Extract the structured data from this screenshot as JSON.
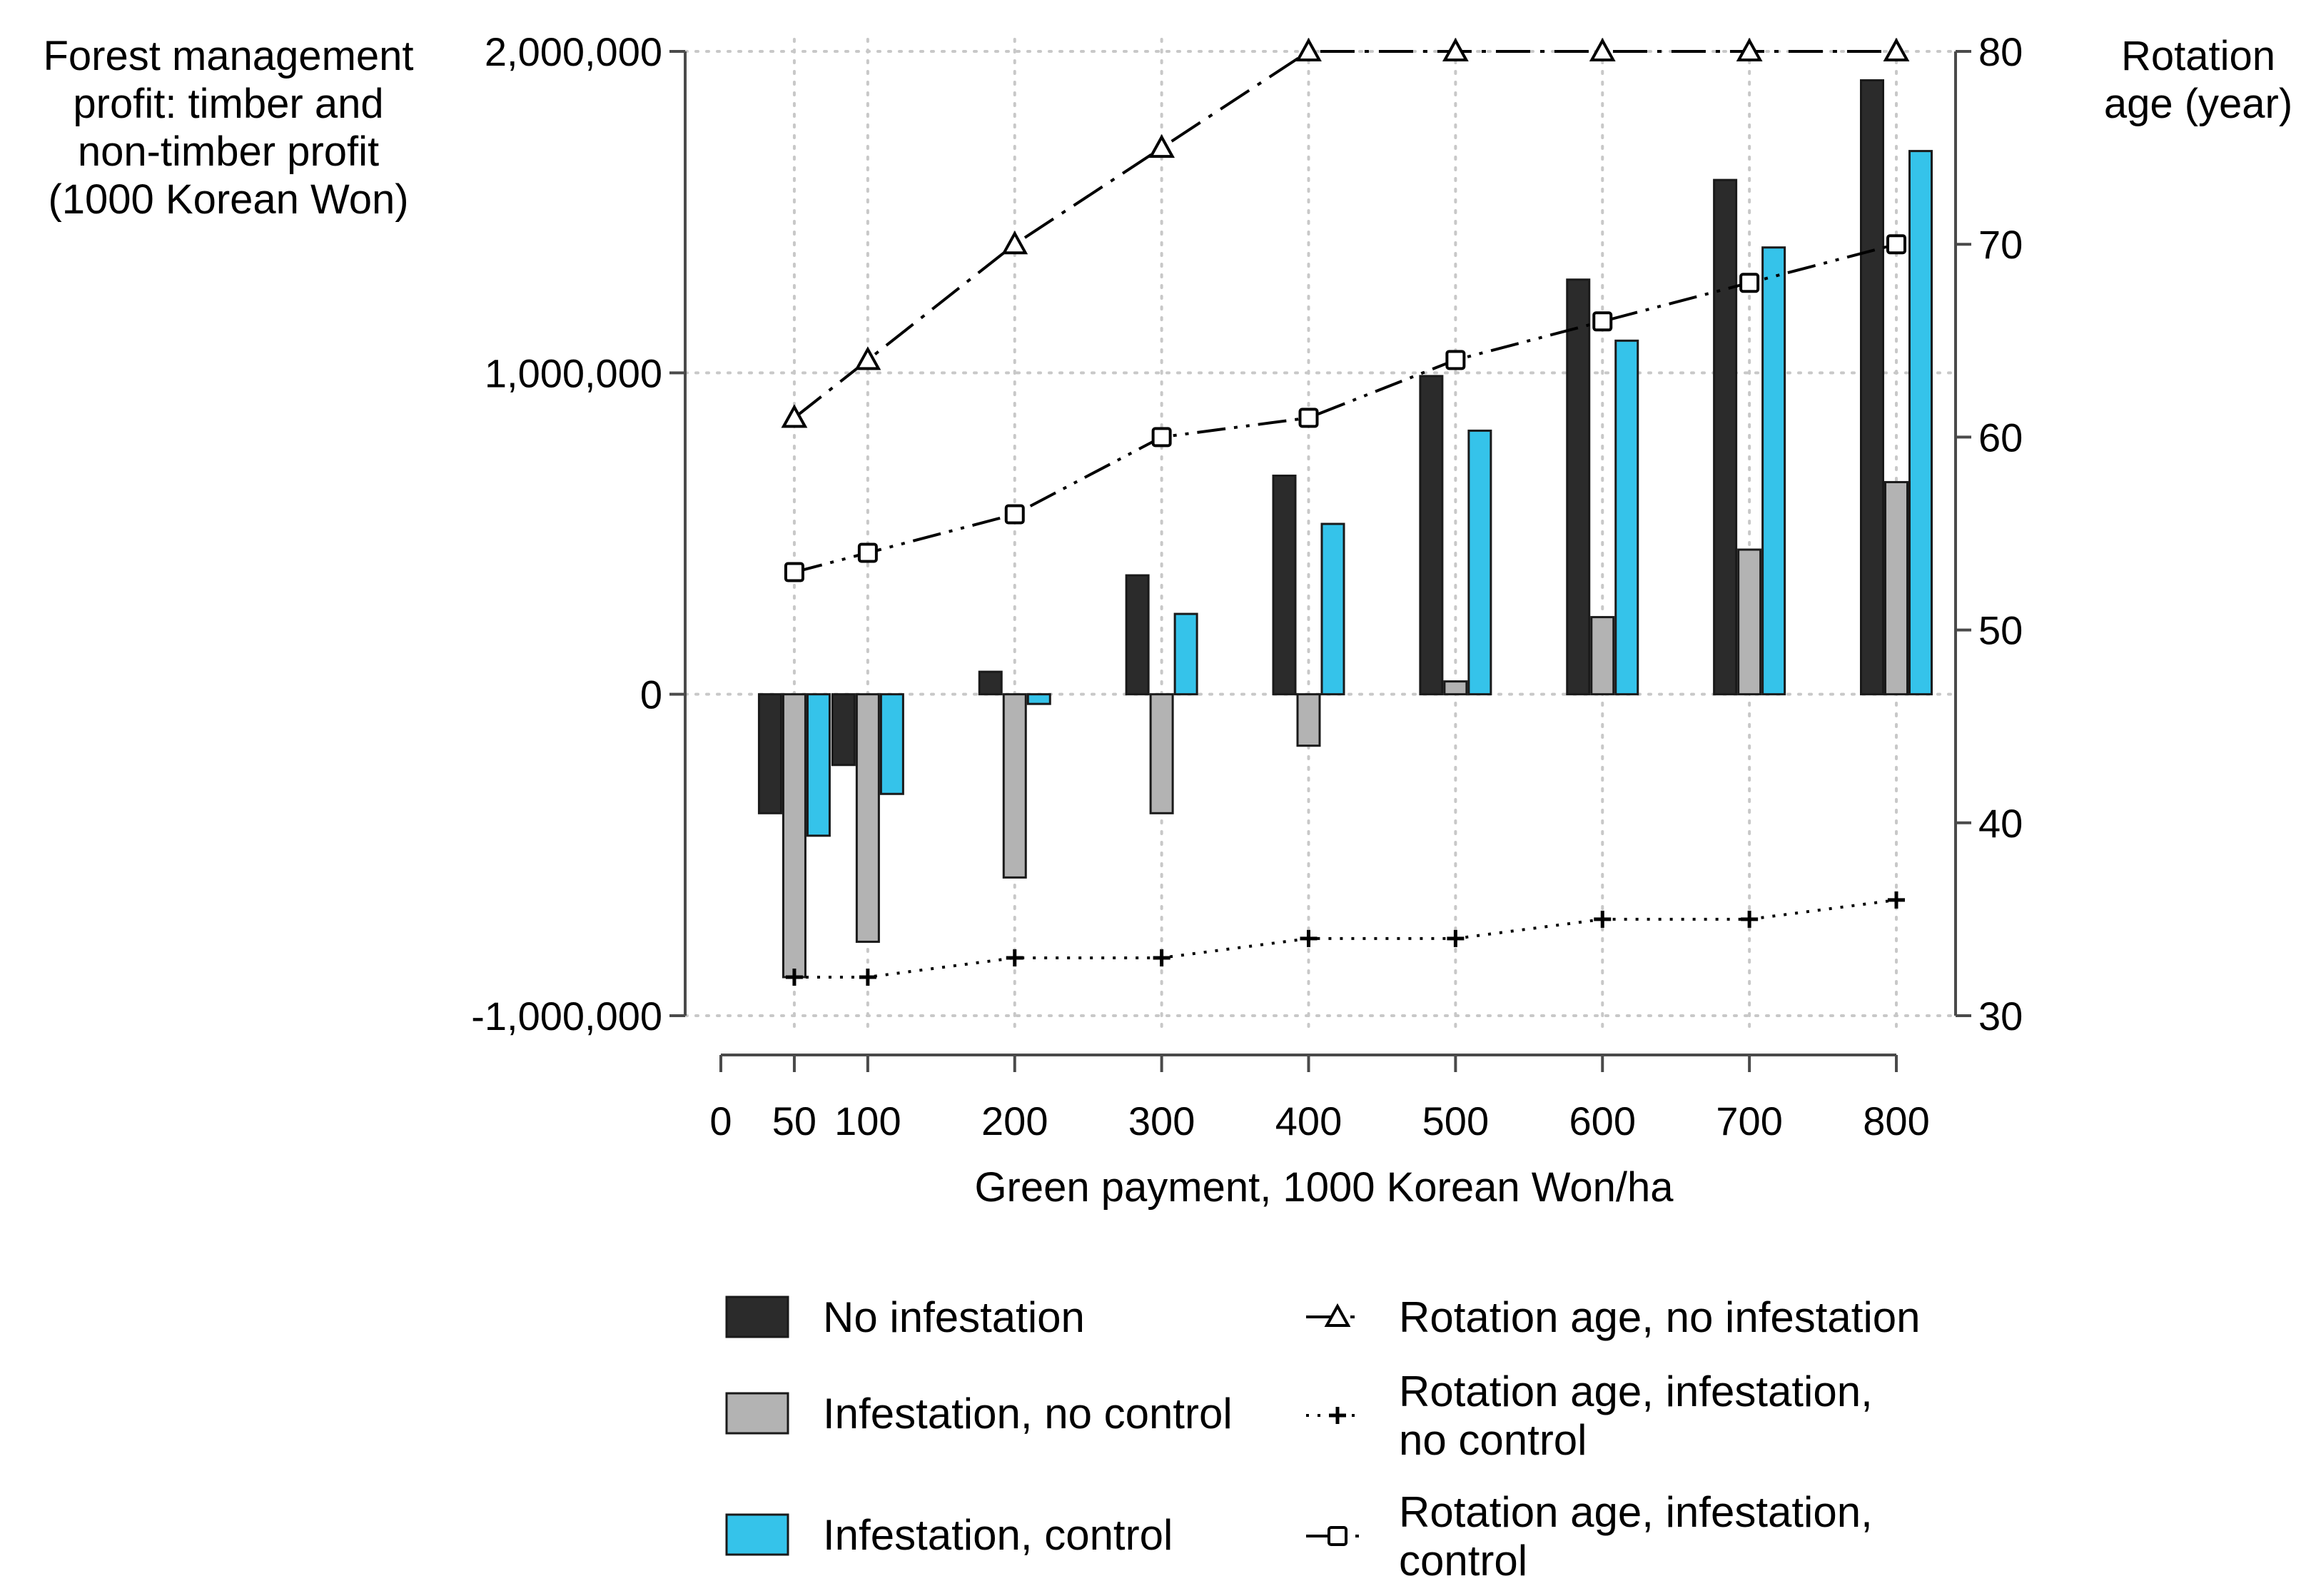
{
  "chart_data": {
    "type": "bar",
    "categories": [
      "50",
      "100",
      "200",
      "300",
      "400",
      "500",
      "600",
      "700",
      "800"
    ],
    "x_values": [
      50,
      100,
      200,
      300,
      400,
      500,
      600,
      700,
      800
    ],
    "xlabel": "Green payment, 1000 Korean Won/ha",
    "x_ticks": [
      "0",
      "50",
      "100",
      "200",
      "300",
      "400",
      "500",
      "600",
      "700",
      "800"
    ],
    "x_tick_values": [
      0,
      50,
      100,
      200,
      300,
      400,
      500,
      600,
      700,
      800
    ],
    "xlim": [
      0,
      800
    ],
    "ylabel_lines": [
      "Forest management",
      "profit: timber and",
      "non-timber profit",
      "(1000 Korean Won)"
    ],
    "ylim": [
      -1000000,
      2000000
    ],
    "y_ticks": [
      "-1,000,000",
      "0",
      "1,000,000",
      "2,000,000"
    ],
    "y_tick_values": [
      -1000000,
      0,
      1000000,
      2000000
    ],
    "y2label_lines": [
      "Rotation",
      "age (year)"
    ],
    "y2lim": [
      30,
      80
    ],
    "y2_ticks": [
      "30",
      "40",
      "50",
      "60",
      "70",
      "80"
    ],
    "y2_tick_values": [
      30,
      40,
      50,
      60,
      70,
      80
    ],
    "grid": true,
    "legend_position": "bottom",
    "series": [
      {
        "name": "No infestation",
        "kind": "bar",
        "color": "#2b2b2b",
        "values": [
          -370000,
          -220000,
          70000,
          370000,
          680000,
          990000,
          1290000,
          1600000,
          1910000
        ]
      },
      {
        "name": "Infestation, no control",
        "kind": "bar",
        "color": "#b3b3b3",
        "values": [
          -880000,
          -770000,
          -570000,
          -370000,
          -160000,
          40000,
          240000,
          450000,
          660000
        ]
      },
      {
        "name": "Infestation, control",
        "kind": "bar",
        "color": "#35c3ea",
        "values": [
          -440000,
          -310000,
          -30000,
          250000,
          530000,
          820000,
          1100000,
          1390000,
          1690000
        ]
      },
      {
        "name": "Rotation age, no infestation",
        "kind": "line",
        "axis": "right",
        "marker": "triangle",
        "dash": "dashdot",
        "values": [
          61,
          64,
          70,
          75,
          80,
          80,
          80,
          80,
          80
        ]
      },
      {
        "name": "Rotation age, infestation, no control",
        "kind": "line",
        "axis": "right",
        "marker": "plus",
        "dash": "dotted",
        "values": [
          32,
          32,
          33,
          33,
          34,
          34,
          35,
          35,
          36
        ]
      },
      {
        "name": "Rotation age, infestation, control",
        "kind": "line",
        "axis": "right",
        "marker": "square",
        "dash": "dashdotdot",
        "values": [
          53,
          54,
          56,
          60,
          61,
          64,
          66,
          68,
          70
        ]
      }
    ],
    "legend": {
      "left": [
        {
          "text_lines": [
            "No infestation"
          ]
        },
        {
          "text_lines": [
            "Infestation, no control"
          ]
        },
        {
          "text_lines": [
            "Infestation, control"
          ]
        }
      ],
      "right": [
        {
          "text_lines": [
            "Rotation age, no infestation"
          ]
        },
        {
          "text_lines": [
            "Rotation age, infestation,",
            "no control"
          ]
        },
        {
          "text_lines": [
            "Rotation age, infestation,",
            "control"
          ]
        }
      ]
    }
  }
}
